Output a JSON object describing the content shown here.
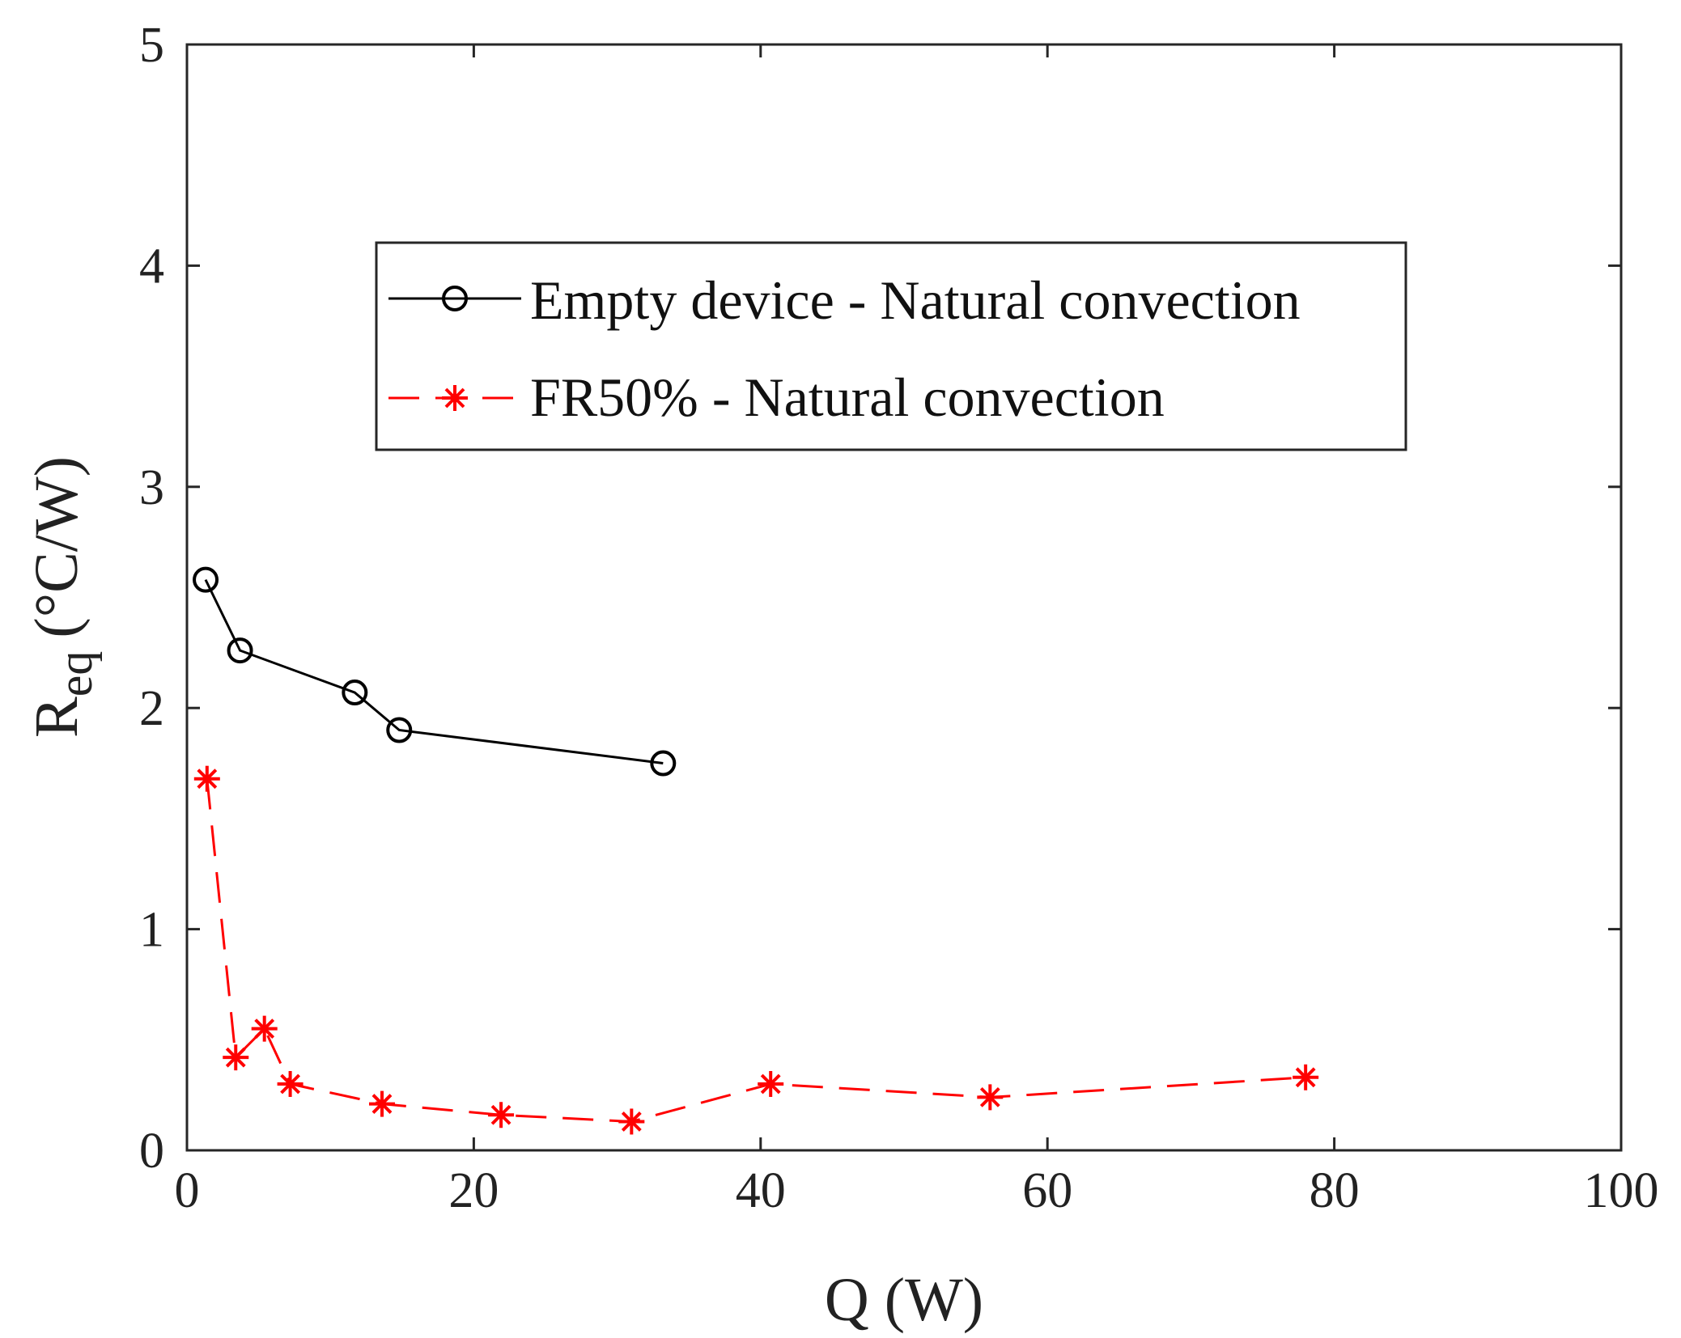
{
  "chart_data": {
    "type": "line",
    "title": "",
    "xlabel": "Q (W)",
    "ylabel": {
      "main": "R",
      "subscript": "eq",
      "unit": "(°C/W)"
    },
    "xlim": [
      0,
      100
    ],
    "ylim": [
      0,
      5
    ],
    "xticks": [
      0,
      20,
      40,
      60,
      80,
      100
    ],
    "yticks": [
      0,
      1,
      2,
      3,
      4,
      5
    ],
    "xtick_labels": [
      "0",
      "20",
      "40",
      "60",
      "80",
      "100"
    ],
    "ytick_labels": [
      "0",
      "1",
      "2",
      "3",
      "4",
      "5"
    ],
    "grid": false,
    "legend_position": "upper-center",
    "series": [
      {
        "name": "Empty device - Natural convection",
        "color": "#000000",
        "line_style": "solid",
        "marker": "circle",
        "x": [
          1.3,
          3.7,
          11.7,
          14.8,
          33.2
        ],
        "y": [
          2.58,
          2.26,
          2.07,
          1.9,
          1.75
        ]
      },
      {
        "name": "FR50% - Natural convection",
        "color": "#ff0000",
        "line_style": "dashed",
        "marker": "asterisk",
        "x": [
          1.4,
          3.4,
          5.4,
          7.2,
          13.6,
          21.9,
          31.0,
          40.7,
          56.0,
          78.0
        ],
        "y": [
          1.68,
          0.42,
          0.55,
          0.3,
          0.21,
          0.16,
          0.13,
          0.3,
          0.24,
          0.33
        ]
      }
    ]
  }
}
